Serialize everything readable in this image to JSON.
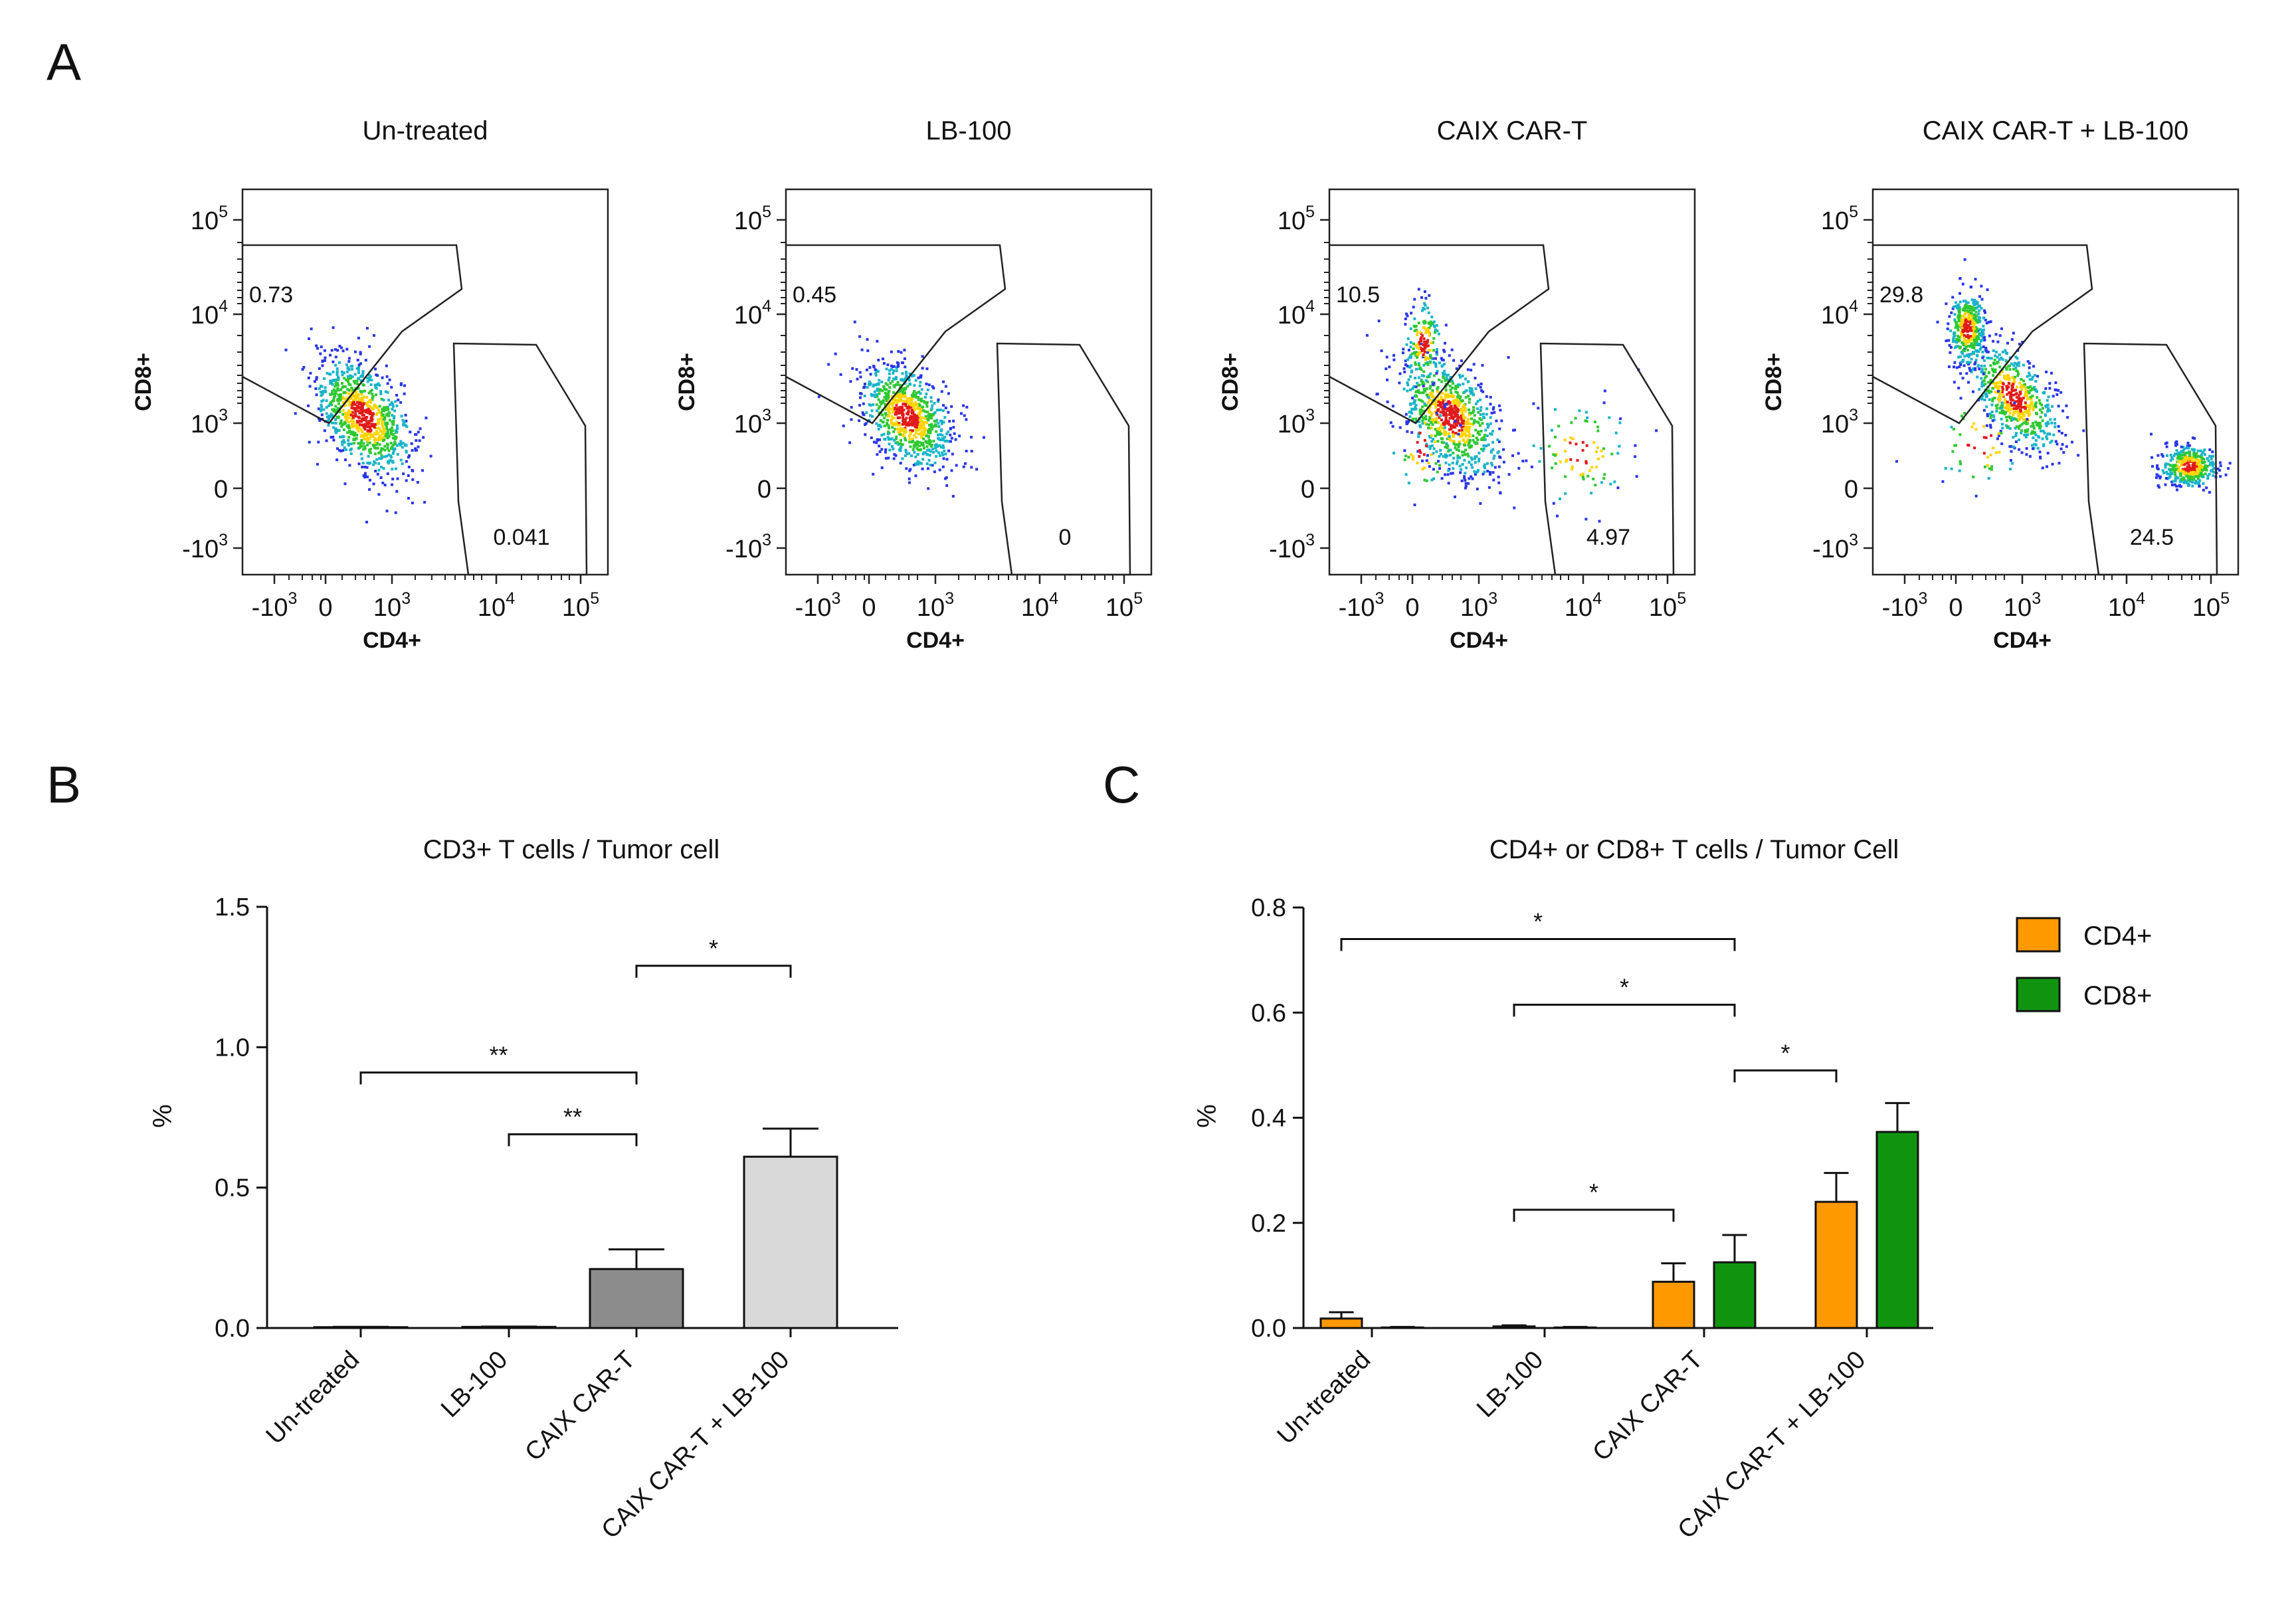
{
  "panel_letters": {
    "a": "A",
    "b": "B",
    "c": "C"
  },
  "colors": {
    "cd4": "#ff9900",
    "cd8": "#109410",
    "bar_caix": "#8c8c8c",
    "bar_combo": "#d9d9d9",
    "axis": "#111111"
  },
  "flow": {
    "x_axis_label": "CD4+",
    "y_axis_label": "CD8+",
    "x_ticks": [
      {
        "base": "-10",
        "exp": "3"
      },
      {
        "base": "0",
        "exp": ""
      },
      {
        "base": "10",
        "exp": "3"
      },
      {
        "base": "10",
        "exp": "4"
      },
      {
        "base": "10",
        "exp": "5"
      }
    ],
    "y_ticks": [
      {
        "base": "10",
        "exp": "5"
      },
      {
        "base": "10",
        "exp": "4"
      },
      {
        "base": "10",
        "exp": "3"
      },
      {
        "base": "0",
        "exp": ""
      },
      {
        "base": "-10",
        "exp": "3"
      }
    ],
    "plots": [
      {
        "title": "Un-treated",
        "cd8_gate": "0.73",
        "cd4_gate": "0.041"
      },
      {
        "title": "LB-100",
        "cd8_gate": "0.45",
        "cd4_gate": "0"
      },
      {
        "title": "CAIX CAR-T",
        "cd8_gate": "10.5",
        "cd4_gate": "4.97"
      },
      {
        "title": "CAIX CAR-T + LB-100",
        "cd8_gate": "29.8",
        "cd4_gate": "24.5"
      }
    ]
  },
  "chart_data": [
    {
      "type": "bar",
      "panel": "B",
      "title": "CD3+ T cells / Tumor cell",
      "ylabel": "%",
      "ylim": [
        0,
        1.5
      ],
      "yticks": [
        "0.0",
        "0.5",
        "1.0",
        "1.5"
      ],
      "categories": [
        "Un-treated",
        "LB-100",
        "CAIX CAR-T",
        "CAIX CAR-T + LB-100"
      ],
      "values": [
        0.003,
        0.004,
        0.21,
        0.61
      ],
      "errors": [
        0.001,
        0.001,
        0.07,
        0.1
      ],
      "significance": [
        {
          "from": 0,
          "to": 2,
          "label": "**",
          "y": 0.91
        },
        {
          "from": 1,
          "to": 2,
          "label": "**",
          "y": 0.69
        },
        {
          "from": 2,
          "to": 3,
          "label": "*",
          "y": 1.29
        }
      ]
    },
    {
      "type": "bar",
      "panel": "C",
      "title": "CD4+ or CD8+ T cells / Tumor Cell",
      "ylabel": "%",
      "ylim": [
        0,
        0.8
      ],
      "yticks": [
        "0.0",
        "0.2",
        "0.4",
        "0.6",
        "0.8"
      ],
      "categories": [
        "Un-treated",
        "LB-100",
        "CAIX CAR-T",
        "CAIX CAR-T + LB-100"
      ],
      "series": [
        {
          "name": "CD4+",
          "values": [
            0.018,
            0.003,
            0.088,
            0.24
          ],
          "errors": [
            0.012,
            0.002,
            0.035,
            0.055
          ]
        },
        {
          "name": "CD8+",
          "values": [
            0.001,
            0.001,
            0.125,
            0.373
          ],
          "errors": [
            0.001,
            0.001,
            0.052,
            0.055
          ]
        }
      ],
      "significance": [
        {
          "from": [
            0,
            0
          ],
          "to": [
            2,
            1
          ],
          "label": "*",
          "y": 0.74
        },
        {
          "from": [
            1,
            0
          ],
          "to": [
            2,
            1
          ],
          "label": "*",
          "y": 0.615
        },
        {
          "from": [
            2,
            1
          ],
          "to": [
            3,
            0
          ],
          "label": "*",
          "y": 0.49
        },
        {
          "from": [
            1,
            0
          ],
          "to": [
            2,
            0
          ],
          "label": "*",
          "y": 0.225
        }
      ]
    }
  ]
}
